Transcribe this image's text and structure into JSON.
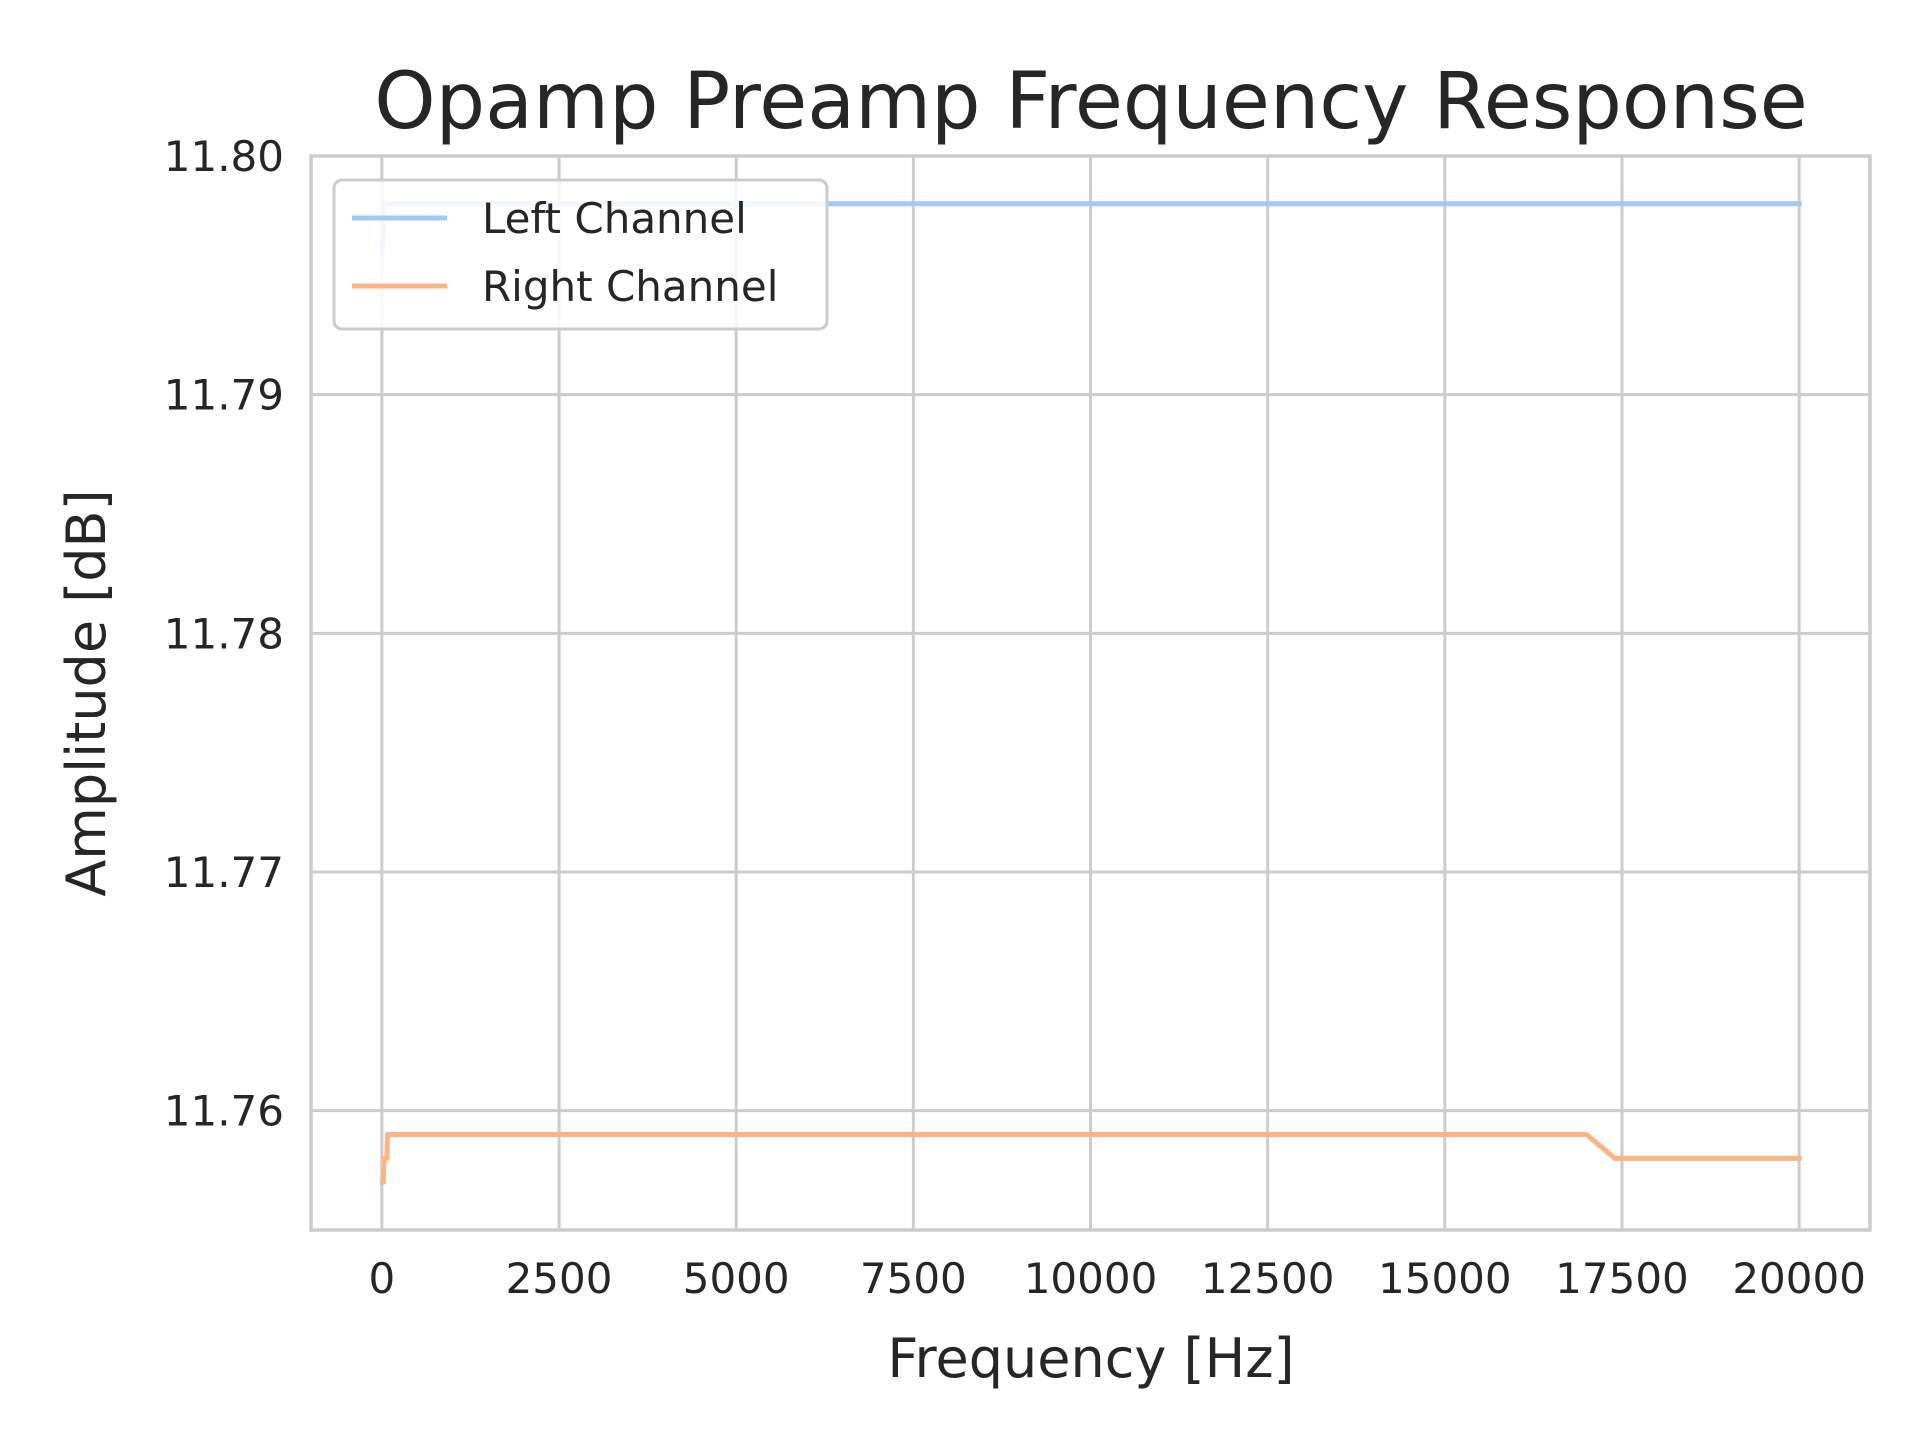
{
  "chart_data": {
    "type": "line",
    "title": "Opamp Preamp Frequency Response",
    "xlabel": "Frequency [Hz]",
    "ylabel": "Amplitude [dB]",
    "xlim": [
      -1000,
      21000
    ],
    "ylim": [
      11.755,
      11.8
    ],
    "xticks": [
      0,
      2500,
      5000,
      7500,
      10000,
      12500,
      15000,
      17500,
      20000
    ],
    "xtick_labels": [
      "0",
      "2500",
      "5000",
      "7500",
      "10000",
      "12500",
      "15000",
      "17500",
      "20000"
    ],
    "yticks": [
      11.76,
      11.77,
      11.78,
      11.79,
      11.8
    ],
    "ytick_labels": [
      "11.76",
      "11.77",
      "11.78",
      "11.79",
      "11.80"
    ],
    "grid": true,
    "legend_position": "top-left",
    "series": [
      {
        "name": "Left Channel",
        "color": "#a1c9f4",
        "x": [
          10,
          20,
          30,
          40,
          60,
          100,
          1000,
          5000,
          10000,
          15000,
          20000
        ],
        "y": [
          11.796,
          11.797,
          11.798,
          11.798,
          11.798,
          11.798,
          11.798,
          11.798,
          11.798,
          11.798,
          11.798
        ]
      },
      {
        "name": "Right Channel",
        "color": "#ffb482",
        "x": [
          10,
          20,
          30,
          40,
          60,
          70,
          80,
          100,
          1000,
          5000,
          10000,
          15000,
          17000,
          17400,
          18000,
          19000,
          20000
        ],
        "y": [
          11.757,
          11.757,
          11.758,
          11.758,
          11.758,
          11.758,
          11.759,
          11.759,
          11.759,
          11.759,
          11.759,
          11.759,
          11.759,
          11.758,
          11.758,
          11.758,
          11.758
        ]
      }
    ]
  }
}
